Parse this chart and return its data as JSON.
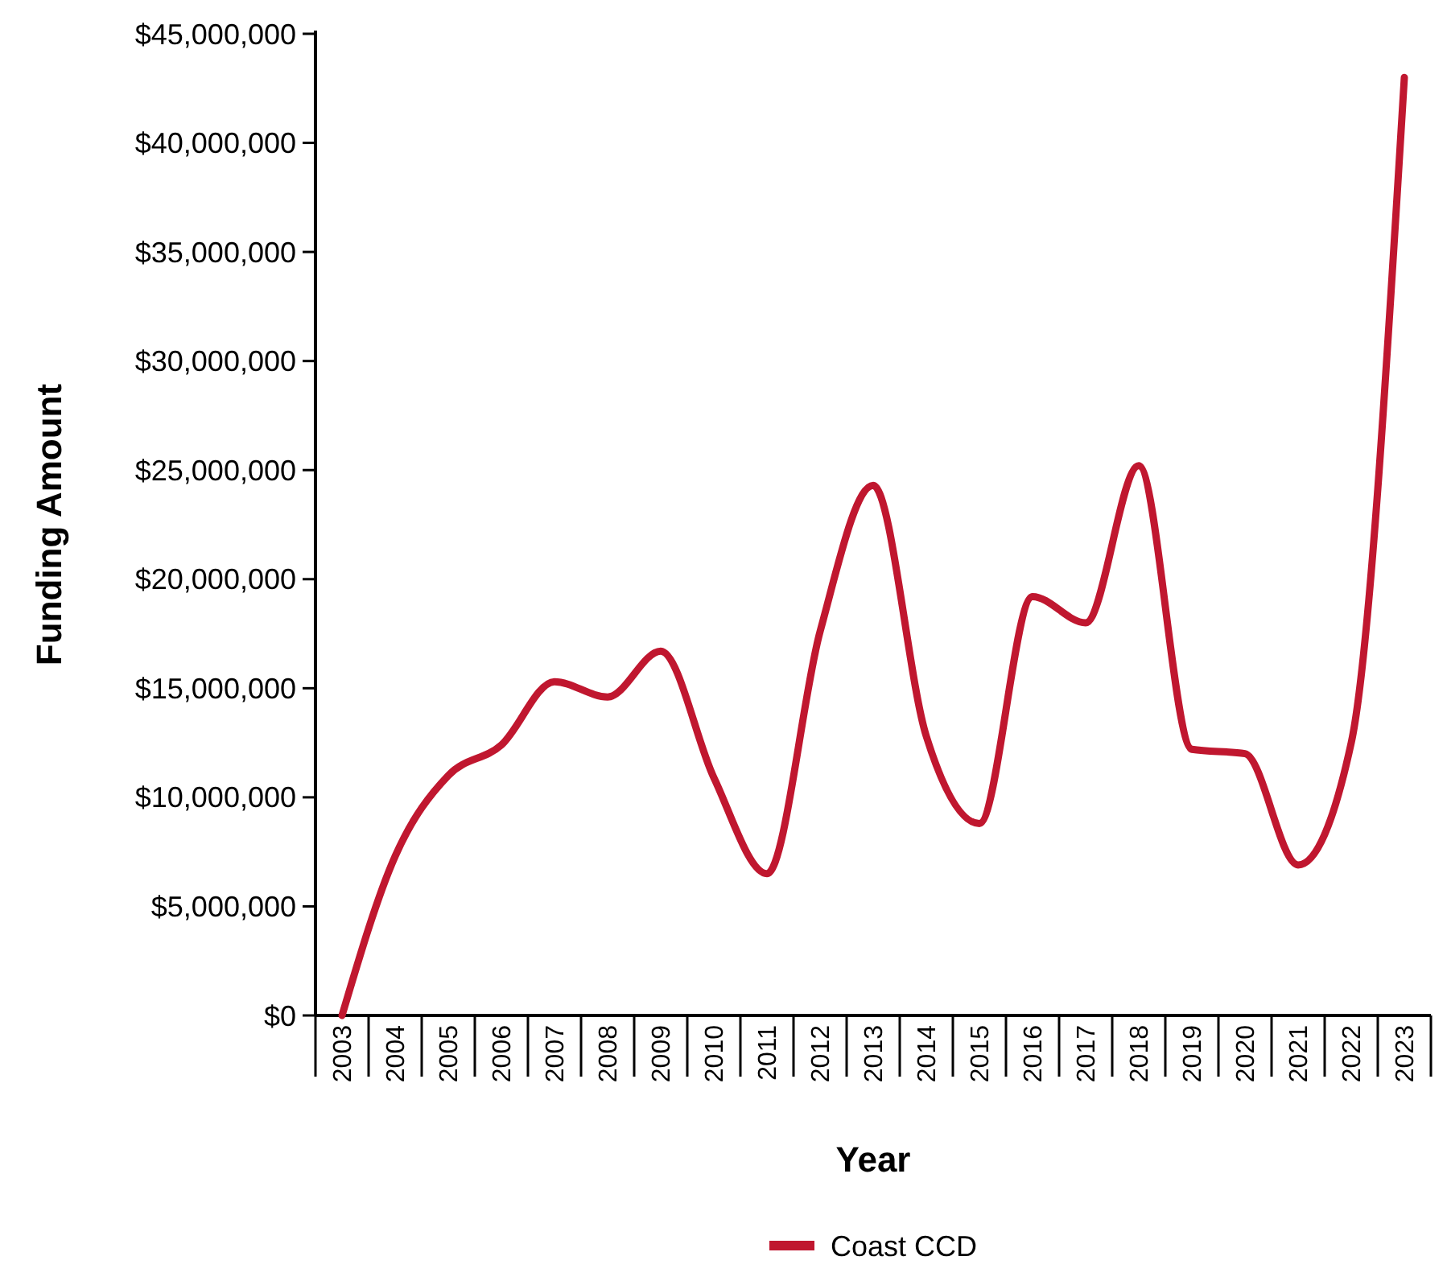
{
  "chart_data": {
    "type": "line",
    "xlabel": "Year",
    "ylabel": "Funding Amount",
    "categories": [
      "2003",
      "2004",
      "2005",
      "2006",
      "2007",
      "2008",
      "2009",
      "2010",
      "2011",
      "2012",
      "2013",
      "2014",
      "2015",
      "2016",
      "2017",
      "2018",
      "2019",
      "2020",
      "2021",
      "2022",
      "2023"
    ],
    "series": [
      {
        "name": "Coast CCD",
        "color": "#c0172f",
        "values": [
          0,
          7300000,
          11000000,
          12400000,
          15300000,
          14600000,
          16700000,
          10900000,
          6500000,
          17600000,
          24300000,
          12800000,
          8800000,
          19200000,
          18000000,
          25200000,
          12200000,
          12000000,
          6900000,
          12500000,
          43000000
        ]
      }
    ],
    "ylim": [
      0,
      45000000
    ],
    "yticks": [
      {
        "value": 0,
        "label": "$0"
      },
      {
        "value": 5000000,
        "label": "$5,000,000"
      },
      {
        "value": 10000000,
        "label": "$10,000,000"
      },
      {
        "value": 15000000,
        "label": "$15,000,000"
      },
      {
        "value": 20000000,
        "label": "$20,000,000"
      },
      {
        "value": 25000000,
        "label": "$25,000,000"
      },
      {
        "value": 30000000,
        "label": "$30,000,000"
      },
      {
        "value": 35000000,
        "label": "$35,000,000"
      },
      {
        "value": 40000000,
        "label": "$40,000,000"
      },
      {
        "value": 45000000,
        "label": "$45,000,000"
      }
    ],
    "legend": "bottom",
    "grid": false,
    "marker": "none",
    "line_style": "solid"
  }
}
